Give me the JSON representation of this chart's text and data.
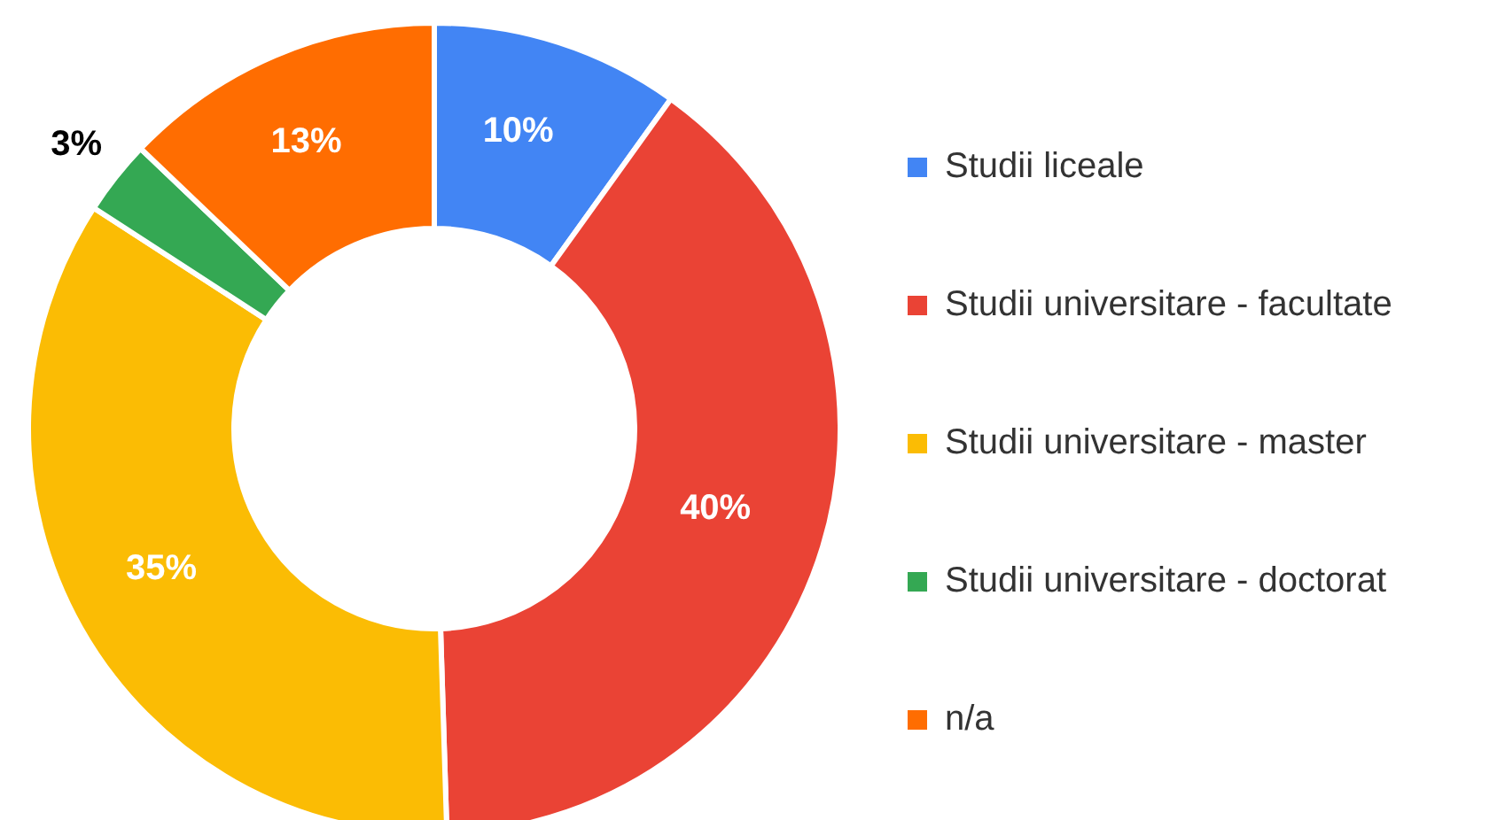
{
  "chart_data": {
    "type": "donut",
    "categories": [
      "Studii liceale",
      "Studii universitare - facultate",
      "Studii universitare - master",
      "Studii universitare - doctorat",
      "n/a"
    ],
    "values": [
      10,
      40,
      35,
      3,
      13
    ],
    "colors": [
      "#4285f4",
      "#ea4335",
      "#fbbc04",
      "#34a853",
      "#ff6d01"
    ],
    "value_labels": [
      "10%",
      "40%",
      "35%",
      "3%",
      "13%"
    ],
    "legend": "right"
  }
}
